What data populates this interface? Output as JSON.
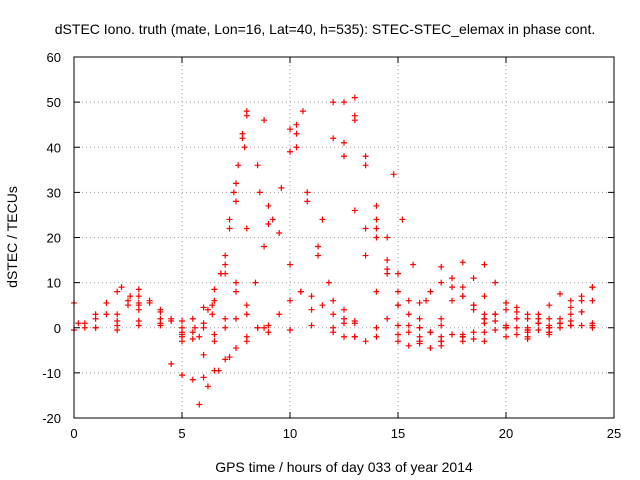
{
  "chart_data": {
    "type": "scatter",
    "title": "dSTEC Iono. truth (mate, Lon=16, Lat=40, h=535): STEC-STEC_elemax in phase cont.",
    "xlabel": "GPS time / hours of day 033 of year 2014",
    "ylabel": "dSTEC  / TECUs",
    "xlim": [
      0,
      25
    ],
    "ylim": [
      -20,
      60
    ],
    "xticks": [
      0,
      5,
      10,
      15,
      20,
      25
    ],
    "yticks": [
      -20,
      -10,
      0,
      10,
      20,
      30,
      40,
      50,
      60
    ],
    "grid": true,
    "marker": "+",
    "color": "#ff0000",
    "series": [
      {
        "x": [
          0.0,
          0.5,
          1.0,
          1.5,
          2.0,
          2.2,
          2.6,
          3.0
        ],
        "y": [
          -0.5,
          1.0,
          3.0,
          5.5,
          8.0,
          9.0,
          7.0,
          5.0
        ]
      },
      {
        "x": [
          0.0,
          1.0,
          2.0,
          3.0,
          4.0,
          5.0,
          5.5,
          6.0,
          6.4,
          6.8,
          7.2,
          7.5,
          7.8,
          8.0
        ],
        "y": [
          5.5,
          2.0,
          -0.5,
          0.5,
          1.0,
          -1.5,
          -1.0,
          1.0,
          5.0,
          12.0,
          22.0,
          32.0,
          43.0,
          48.0
        ]
      },
      {
        "x": [
          0.2,
          1.0,
          2.0,
          3.0,
          4.0,
          5.0,
          5.6,
          6.2,
          6.8,
          7.2,
          7.6,
          8.0
        ],
        "y": [
          1.0,
          0.0,
          0.5,
          1.5,
          0.5,
          -2.0,
          0.0,
          4.0,
          12.0,
          24.0,
          36.0,
          47.0
        ]
      },
      {
        "x": [
          0.5,
          1.5,
          2.5,
          3.0,
          3.5,
          4.5,
          5.0,
          5.5,
          6.0,
          6.5,
          7.0,
          7.4,
          7.8
        ],
        "y": [
          0.0,
          3.0,
          6.0,
          8.5,
          6.0,
          2.0,
          -1.0,
          -2.5,
          0.0,
          6.0,
          16.0,
          30.0,
          42.0
        ]
      },
      {
        "x": [
          1.0,
          2.0,
          3.0,
          4.0,
          5.0,
          5.8,
          6.4,
          7.0,
          7.5,
          7.9
        ],
        "y": [
          0.0,
          1.5,
          4.0,
          2.0,
          -3.0,
          -2.0,
          3.0,
          14.0,
          28.0,
          40.0
        ]
      },
      {
        "x": [
          2.0,
          2.5,
          3.0,
          3.5,
          4.0,
          4.5,
          5.0
        ],
        "y": [
          3.0,
          5.0,
          7.0,
          5.5,
          3.5,
          1.5,
          0.0
        ]
      },
      {
        "x": [
          3.0,
          4.0,
          5.0,
          5.5,
          6.0,
          6.5,
          7.0,
          7.5,
          8.0,
          8.5,
          9.0,
          10.0,
          11.0,
          12.0,
          13.0
        ],
        "y": [
          5.5,
          4.0,
          1.5,
          2.0,
          4.5,
          8.5,
          12.0,
          8.0,
          3.0,
          0.0,
          -1.0,
          -0.5,
          0.5,
          0.0,
          -2.0
        ]
      },
      {
        "x": [
          4.5,
          5.0,
          5.5,
          6.0,
          6.5,
          7.0,
          7.5,
          8.0,
          8.5,
          9.0
        ],
        "y": [
          -8.0,
          -10.5,
          -11.5,
          -11.0,
          -9.5,
          -7.0,
          -4.5,
          -2.0,
          0.0,
          0.5
        ]
      },
      {
        "x": [
          5.8,
          6.2,
          6.7,
          7.2,
          8.0,
          8.8,
          9.5,
          10.0,
          10.5,
          11.0,
          11.5,
          12.0,
          12.5,
          13.0
        ],
        "y": [
          -17.0,
          -13.0,
          -9.5,
          -6.5,
          -3.0,
          0.0,
          3.0,
          6.0,
          8.0,
          7.0,
          5.0,
          3.0,
          2.0,
          1.5
        ]
      },
      {
        "x": [
          6.0,
          6.5,
          7.0,
          7.5,
          8.0,
          8.5,
          8.8
        ],
        "y": [
          -6.0,
          -3.0,
          2.0,
          10.0,
          22.0,
          36.0,
          46.0
        ]
      },
      {
        "x": [
          6.5,
          7.0,
          7.5,
          8.0,
          8.4,
          8.8,
          9.0
        ],
        "y": [
          -1.5,
          0.0,
          2.0,
          5.0,
          10.0,
          18.0,
          23.0
        ]
      },
      {
        "x": [
          8.6,
          9.0,
          9.5,
          10.0,
          10.5,
          11.0,
          12.0,
          12.5
        ],
        "y": [
          30.0,
          27.0,
          21.0,
          14.0,
          8.0,
          4.0,
          -1.0,
          -2.0
        ]
      },
      {
        "x": [
          10.0,
          10.3,
          10.8,
          11.3,
          11.8,
          12.5,
          13.0,
          14.0,
          15.0,
          16.0
        ],
        "y": [
          44.0,
          40.0,
          28.0,
          18.0,
          10.0,
          4.0,
          1.0,
          0.0,
          0.5,
          0.0
        ]
      },
      {
        "x": [
          9.2,
          9.6,
          10.0,
          10.3,
          10.6
        ],
        "y": [
          24.0,
          31.0,
          39.0,
          45.0,
          48.0
        ]
      },
      {
        "x": [
          10.3,
          10.8,
          11.3,
          12.0,
          12.5,
          13.0,
          13.5,
          14.0
        ],
        "y": [
          43.0,
          30.0,
          16.0,
          6.0,
          1.0,
          -2.0,
          -3.0,
          -2.0
        ]
      },
      {
        "x": [
          11.5,
          12.0,
          12.5,
          13.0
        ],
        "y": [
          24.0,
          42.0,
          50.0,
          46.0
        ]
      },
      {
        "x": [
          12.0,
          12.5,
          13.0,
          13.5,
          14.0,
          14.5,
          15.0,
          16.0,
          17.0
        ],
        "y": [
          50.0,
          38.0,
          26.0,
          16.0,
          8.0,
          2.0,
          -1.5,
          -3.0,
          -3.0
        ]
      },
      {
        "x": [
          12.5,
          13.0,
          13.5,
          14.0,
          14.5,
          15.0,
          15.5,
          16.0,
          16.5,
          17.0,
          18.0
        ],
        "y": [
          41.0,
          51.0,
          38.0,
          24.0,
          13.0,
          5.0,
          -1.0,
          -3.5,
          -4.5,
          -4.0,
          -3.0
        ]
      },
      {
        "x": [
          13.0,
          13.5,
          14.0,
          14.5,
          15.0,
          15.5,
          16.0,
          17.0,
          18.0,
          18.5
        ],
        "y": [
          47.0,
          36.0,
          22.0,
          12.0,
          5.0,
          0.5,
          -2.0,
          -3.0,
          -2.0,
          -1.0
        ]
      },
      {
        "x": [
          13.5,
          14.0,
          14.5,
          15.0,
          15.5,
          16.0
        ],
        "y": [
          22.0,
          27.0,
          20.0,
          12.0,
          6.0,
          2.0
        ]
      },
      {
        "x": [
          14.0,
          14.5,
          15.0,
          15.5,
          16.0,
          16.5,
          17.0,
          18.0,
          19.0
        ],
        "y": [
          20.0,
          15.0,
          8.0,
          3.0,
          0.0,
          -1.0,
          -2.0,
          -1.5,
          -1.0
        ]
      },
      {
        "x": [
          14.8,
          15.2,
          15.7,
          16.3,
          17.0,
          17.5,
          18.0,
          18.5,
          19.0
        ],
        "y": [
          34.0,
          24.0,
          14.0,
          6.0,
          0.5,
          -1.5,
          -2.0,
          -2.5,
          -3.0
        ]
      },
      {
        "x": [
          15.0,
          15.5,
          16.0,
          16.5,
          17.0,
          17.5,
          18.0,
          18.5,
          19.0,
          20.0,
          21.0,
          22.0
        ],
        "y": [
          -3.0,
          -4.0,
          -3.0,
          -1.0,
          2.0,
          6.0,
          9.0,
          5.0,
          2.0,
          0.0,
          -1.0,
          0.0
        ]
      },
      {
        "x": [
          16.0,
          16.5,
          17.0,
          17.5,
          18.0,
          18.5,
          19.0,
          19.5,
          20.0,
          20.5,
          21.0,
          22.0
        ],
        "y": [
          5.5,
          8.0,
          10.0,
          9.0,
          7.0,
          5.0,
          3.0,
          1.5,
          0.5,
          0.0,
          -0.5,
          -1.0
        ]
      },
      {
        "x": [
          17.0,
          17.5,
          18.0,
          18.5,
          19.0,
          19.5,
          20.0,
          21.0
        ],
        "y": [
          13.5,
          11.0,
          7.0,
          4.0,
          1.0,
          -0.5,
          -2.0,
          -2.5
        ]
      },
      {
        "x": [
          18.0,
          18.5,
          19.0,
          19.5,
          20.0,
          20.5,
          21.0,
          22.0
        ],
        "y": [
          14.5,
          11.0,
          7.0,
          3.0,
          0.0,
          -1.5,
          -2.0,
          -1.5
        ]
      },
      {
        "x": [
          19.0,
          19.5,
          20.0,
          20.5,
          21.0,
          21.5,
          22.0,
          23.0,
          24.0
        ],
        "y": [
          14.0,
          10.0,
          5.5,
          2.0,
          0.0,
          -0.5,
          0.0,
          0.5,
          0.0
        ]
      },
      {
        "x": [
          19.0,
          19.5,
          20.0,
          20.5,
          21.0,
          21.5,
          22.0,
          22.5,
          23.0,
          23.5,
          24.0
        ],
        "y": [
          2.0,
          3.0,
          4.0,
          4.5,
          3.0,
          1.0,
          0.0,
          1.0,
          3.0,
          6.0,
          9.0
        ]
      },
      {
        "x": [
          20.0,
          20.5,
          21.0,
          21.5,
          22.0,
          22.5,
          23.0,
          23.5,
          24.0
        ],
        "y": [
          5.5,
          3.5,
          2.0,
          1.0,
          0.5,
          2.0,
          4.5,
          7.0,
          9.0
        ]
      },
      {
        "x": [
          21.0,
          21.5,
          22.0,
          22.5,
          23.0,
          23.5,
          24.0
        ],
        "y": [
          -0.5,
          2.0,
          5.0,
          7.5,
          6.0,
          3.5,
          1.0
        ]
      },
      {
        "x": [
          21.5,
          22.0,
          22.5,
          23.0,
          23.5,
          24.0
        ],
        "y": [
          3.0,
          2.0,
          1.0,
          0.5,
          0.5,
          0.5
        ]
      },
      {
        "x": [
          22.0,
          22.5,
          23.0,
          23.5,
          24.0
        ],
        "y": [
          -1.0,
          0.0,
          1.5,
          3.5,
          6.0
        ]
      }
    ]
  }
}
